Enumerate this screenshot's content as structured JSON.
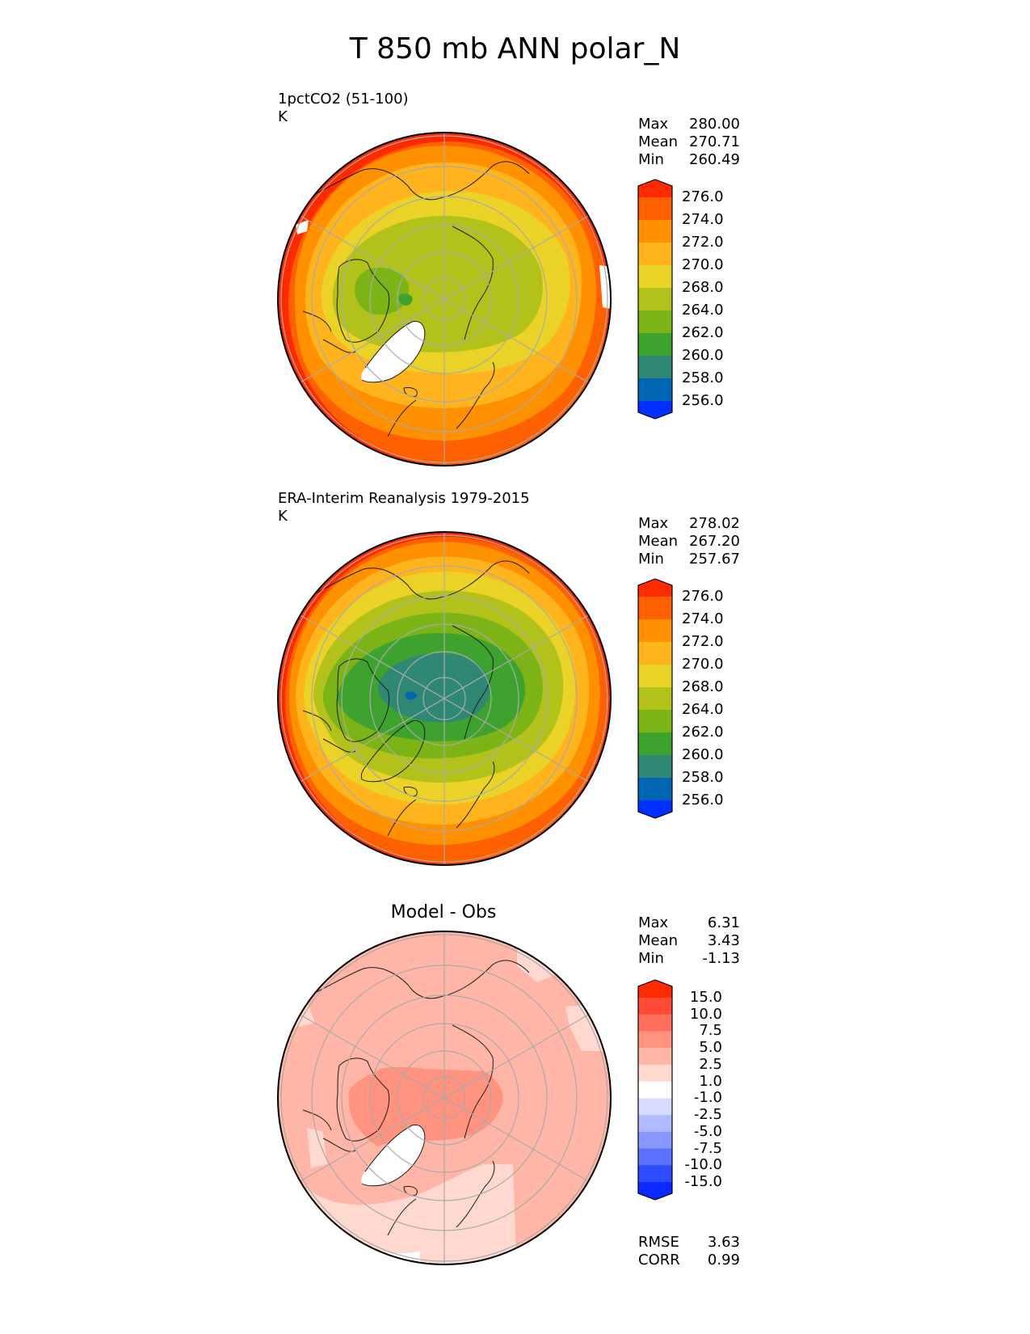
{
  "title": "T 850 mb ANN polar_N",
  "panels": [
    {
      "id": "test",
      "title": "1pctCO2 (51-100)",
      "units": "K",
      "stats": [
        {
          "label": "Max",
          "value": "280.00"
        },
        {
          "label": "Mean",
          "value": "270.71"
        },
        {
          "label": "Min",
          "value": "260.49"
        }
      ],
      "colorbar": {
        "labels": [
          "276.0",
          "274.0",
          "272.0",
          "270.0",
          "268.0",
          "264.0",
          "262.0",
          "260.0",
          "258.0",
          "256.0"
        ],
        "colors": [
          "#ff2a00",
          "#ff6000",
          "#ff9000",
          "#ffb41e",
          "#ead226",
          "#b3c21a",
          "#7cb316",
          "#3ea22e",
          "#2e8874",
          "#0066b4",
          "#0030ff"
        ]
      }
    },
    {
      "id": "reference",
      "title": "ERA-Interim Reanalysis 1979-2015",
      "units": "K",
      "stats": [
        {
          "label": "Max",
          "value": "278.02"
        },
        {
          "label": "Mean",
          "value": "267.20"
        },
        {
          "label": "Min",
          "value": "257.67"
        }
      ],
      "colorbar": {
        "labels": [
          "276.0",
          "274.0",
          "272.0",
          "270.0",
          "268.0",
          "264.0",
          "262.0",
          "260.0",
          "258.0",
          "256.0"
        ],
        "colors": [
          "#ff2a00",
          "#ff6000",
          "#ff9000",
          "#ffb41e",
          "#ead226",
          "#b3c21a",
          "#7cb316",
          "#3ea22e",
          "#2e8874",
          "#0066b4",
          "#0030ff"
        ]
      }
    },
    {
      "id": "diff",
      "title": "Model - Obs",
      "units": "",
      "stats": [
        {
          "label": "Max",
          "value": "6.31"
        },
        {
          "label": "Mean",
          "value": "3.43"
        },
        {
          "label": "Min",
          "value": "-1.13"
        }
      ],
      "extra_stats": [
        {
          "label": "RMSE",
          "value": "3.63"
        },
        {
          "label": "CORR",
          "value": "0.99"
        }
      ],
      "colorbar": {
        "labels": [
          "15.0",
          "10.0",
          "7.5",
          "5.0",
          "2.5",
          "1.0",
          "-1.0",
          "-2.5",
          "-5.0",
          "-7.5",
          "-10.0",
          "-15.0"
        ],
        "colors": [
          "#ff2a00",
          "#ff4a36",
          "#ff6e5a",
          "#ff937f",
          "#ffb6a6",
          "#ffd8d0",
          "#ffffff",
          "#d6dcff",
          "#b0baff",
          "#8898ff",
          "#5a72ff",
          "#2e4cff",
          "#0a2aff"
        ]
      }
    }
  ]
}
